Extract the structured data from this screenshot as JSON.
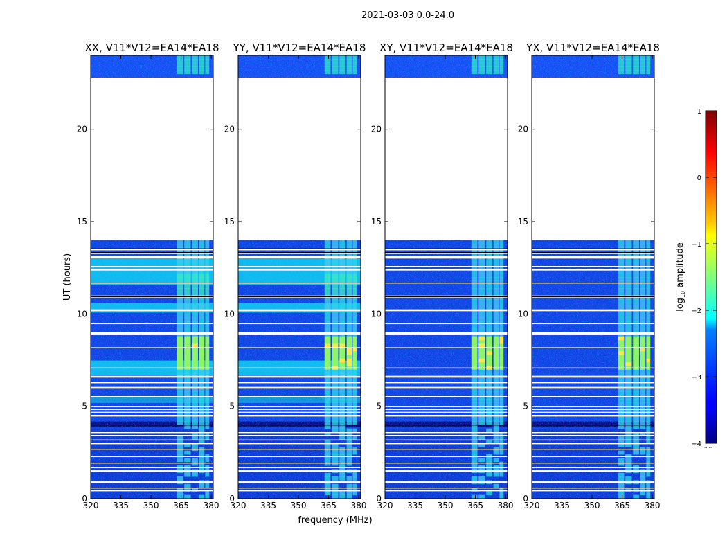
{
  "figure_title": "2021-03-03 0.0-24.0",
  "chart_data": {
    "type": "heatmap",
    "suptitle": "2021-03-03 0.0-24.0",
    "xlabel": "frequency (MHz)",
    "ylabel": "UT (hours)",
    "xlim": [
      320,
      381
    ],
    "ylim": [
      0,
      24
    ],
    "xticks": [
      "320",
      "335",
      "350",
      "365",
      "380"
    ],
    "yticks": [
      "0",
      "5",
      "10",
      "15",
      "20"
    ],
    "panels": [
      {
        "title": "XX, V11*V12=EA14*EA18",
        "baseline": "EA14*EA18",
        "polarization": "XX"
      },
      {
        "title": "YY, V11*V12=EA14*EA18",
        "baseline": "EA14*EA18",
        "polarization": "YY"
      },
      {
        "title": "XY, V11*V12=EA14*EA18",
        "baseline": "EA14*EA18",
        "polarization": "XY"
      },
      {
        "title": "YX, V11*V12=EA14*EA18",
        "baseline": "EA14*EA18",
        "polarization": "YX"
      }
    ],
    "data_gaps_hours": [
      [
        0.85,
        0.95
      ],
      [
        1.45,
        1.55
      ],
      [
        5.95,
        6.05
      ],
      [
        6.55,
        6.65
      ],
      [
        8.85,
        9.0
      ],
      [
        10.15,
        10.25
      ],
      [
        12.35,
        12.45
      ],
      [
        13.0,
        13.15
      ],
      [
        14.0,
        22.8
      ]
    ],
    "bright_band_mhz": [
      363,
      379
    ],
    "colorbar": {
      "label": "log10 amplitude",
      "label_parts": {
        "main": "log",
        "sub": "10",
        "rest": " amplitude"
      },
      "range": [
        -4,
        1
      ],
      "ticks": [
        "1",
        "0",
        "−1",
        "−2",
        "−3",
        "−4"
      ],
      "colormap": "jet",
      "extra_mark": "....."
    }
  }
}
